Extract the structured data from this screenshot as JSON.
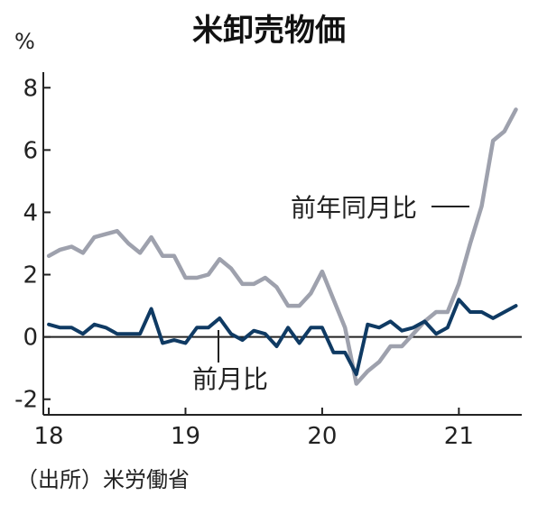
{
  "chart_data": {
    "type": "line",
    "title": "米卸売物価",
    "unit": "%",
    "source": "（出所）米労働省",
    "ylim": [
      -2.5,
      8.5
    ],
    "yticks": [
      -2,
      0,
      2,
      4,
      6,
      8
    ],
    "ytick_labels": [
      "-2",
      "0",
      "2",
      "4",
      "6",
      "8"
    ],
    "xlim": [
      2017.96,
      2021.46
    ],
    "xticks": [
      2018,
      2019,
      2020,
      2021
    ],
    "xtick_labels": [
      "18",
      "19",
      "20",
      "21"
    ],
    "grid": false,
    "x": [
      2018.0,
      2018.083,
      2018.167,
      2018.25,
      2018.333,
      2018.417,
      2018.5,
      2018.583,
      2018.667,
      2018.75,
      2018.833,
      2018.917,
      2019.0,
      2019.083,
      2019.167,
      2019.25,
      2019.333,
      2019.417,
      2019.5,
      2019.583,
      2019.667,
      2019.75,
      2019.833,
      2019.917,
      2020.0,
      2020.083,
      2020.167,
      2020.25,
      2020.333,
      2020.417,
      2020.5,
      2020.583,
      2020.667,
      2020.75,
      2020.833,
      2020.917,
      2021.0,
      2021.083,
      2021.167,
      2021.25,
      2021.333,
      2021.417
    ],
    "series": [
      {
        "name": "前年同月比",
        "color": "#9ea1ad",
        "values": [
          2.6,
          2.8,
          2.9,
          2.7,
          3.2,
          3.3,
          3.4,
          3.0,
          2.7,
          3.2,
          2.6,
          2.6,
          1.9,
          1.9,
          2.0,
          2.5,
          2.2,
          1.7,
          1.7,
          1.9,
          1.6,
          1.0,
          1.0,
          1.4,
          2.1,
          1.2,
          0.3,
          -1.5,
          -1.1,
          -0.8,
          -0.3,
          -0.3,
          0.1,
          0.5,
          0.8,
          0.8,
          1.7,
          3.0,
          4.2,
          6.3,
          6.6,
          7.3
        ]
      },
      {
        "name": "前月比",
        "color": "#0f3a63",
        "values": [
          0.4,
          0.3,
          0.3,
          0.1,
          0.4,
          0.3,
          0.1,
          0.1,
          0.1,
          0.9,
          -0.2,
          -0.1,
          -0.2,
          0.3,
          0.3,
          0.6,
          0.1,
          -0.1,
          0.2,
          0.1,
          -0.3,
          0.3,
          -0.2,
          0.3,
          0.3,
          -0.5,
          -0.5,
          -1.2,
          0.4,
          0.3,
          0.5,
          0.2,
          0.3,
          0.5,
          0.1,
          0.3,
          1.2,
          0.8,
          0.8,
          0.6,
          0.8,
          1.0
        ]
      }
    ],
    "annotations": [
      {
        "text": "前年同月比",
        "series": "前年同月比"
      },
      {
        "text": "前月比",
        "series": "前月比"
      }
    ]
  }
}
